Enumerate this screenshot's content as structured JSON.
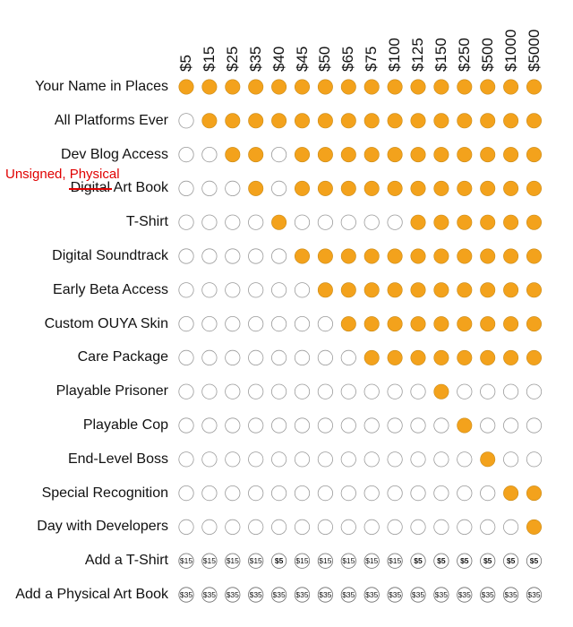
{
  "chart_data": {
    "type": "table",
    "title": "",
    "filled_color": "#f3a21c",
    "empty_color": "#ffffff",
    "tiers": [
      "$5",
      "$15",
      "$25",
      "$35",
      "$40",
      "$45",
      "$50",
      "$65",
      "$75",
      "$100",
      "$125",
      "$150",
      "$250",
      "$500",
      "$1000",
      "$5000"
    ],
    "rows": [
      {
        "label": "Your Name in Places",
        "cells": [
          1,
          1,
          1,
          1,
          1,
          1,
          1,
          1,
          1,
          1,
          1,
          1,
          1,
          1,
          1,
          1
        ]
      },
      {
        "label": "All Platforms Ever",
        "cells": [
          0,
          1,
          1,
          1,
          1,
          1,
          1,
          1,
          1,
          1,
          1,
          1,
          1,
          1,
          1,
          1
        ]
      },
      {
        "label": "Dev Blog Access",
        "cells": [
          0,
          0,
          1,
          1,
          0,
          1,
          1,
          1,
          1,
          1,
          1,
          1,
          1,
          1,
          1,
          1
        ]
      },
      {
        "label_struck": "Digital",
        "label_rest": " Art Book",
        "annotation": "Unsigned, Physical",
        "cells": [
          0,
          0,
          0,
          1,
          0,
          1,
          1,
          1,
          1,
          1,
          1,
          1,
          1,
          1,
          1,
          1
        ]
      },
      {
        "label": "T-Shirt",
        "cells": [
          0,
          0,
          0,
          0,
          1,
          0,
          0,
          0,
          0,
          0,
          1,
          1,
          1,
          1,
          1,
          1
        ]
      },
      {
        "label": "Digital Soundtrack",
        "cells": [
          0,
          0,
          0,
          0,
          0,
          1,
          1,
          1,
          1,
          1,
          1,
          1,
          1,
          1,
          1,
          1
        ]
      },
      {
        "label": "Early Beta Access",
        "cells": [
          0,
          0,
          0,
          0,
          0,
          0,
          1,
          1,
          1,
          1,
          1,
          1,
          1,
          1,
          1,
          1
        ]
      },
      {
        "label": "Custom OUYA Skin",
        "cells": [
          0,
          0,
          0,
          0,
          0,
          0,
          0,
          1,
          1,
          1,
          1,
          1,
          1,
          1,
          1,
          1
        ]
      },
      {
        "label": "Care Package",
        "cells": [
          0,
          0,
          0,
          0,
          0,
          0,
          0,
          0,
          1,
          1,
          1,
          1,
          1,
          1,
          1,
          1
        ]
      },
      {
        "label": "Playable Prisoner",
        "cells": [
          0,
          0,
          0,
          0,
          0,
          0,
          0,
          0,
          0,
          0,
          0,
          1,
          0,
          0,
          0,
          0
        ]
      },
      {
        "label": "Playable Cop",
        "cells": [
          0,
          0,
          0,
          0,
          0,
          0,
          0,
          0,
          0,
          0,
          0,
          0,
          1,
          0,
          0,
          0
        ]
      },
      {
        "label": "End-Level Boss",
        "cells": [
          0,
          0,
          0,
          0,
          0,
          0,
          0,
          0,
          0,
          0,
          0,
          0,
          0,
          1,
          0,
          0
        ]
      },
      {
        "label": "Special Recognition",
        "cells": [
          0,
          0,
          0,
          0,
          0,
          0,
          0,
          0,
          0,
          0,
          0,
          0,
          0,
          0,
          1,
          1
        ]
      },
      {
        "label": "Day with Developers",
        "cells": [
          0,
          0,
          0,
          0,
          0,
          0,
          0,
          0,
          0,
          0,
          0,
          0,
          0,
          0,
          0,
          1
        ]
      },
      {
        "label": "Add a T-Shirt",
        "cells": [
          "$15",
          "$15",
          "$15",
          "$15",
          "$5",
          "$15",
          "$15",
          "$15",
          "$15",
          "$15",
          "$5",
          "$5",
          "$5",
          "$5",
          "$5",
          "$5"
        ]
      },
      {
        "label": "Add a Physical Art Book",
        "cells": [
          "$35",
          "$35",
          "$35",
          "$35",
          "$35",
          "$35",
          "$35",
          "$35",
          "$35",
          "$35",
          "$35",
          "$35",
          "$35",
          "$35",
          "$35",
          "$35"
        ]
      }
    ]
  }
}
